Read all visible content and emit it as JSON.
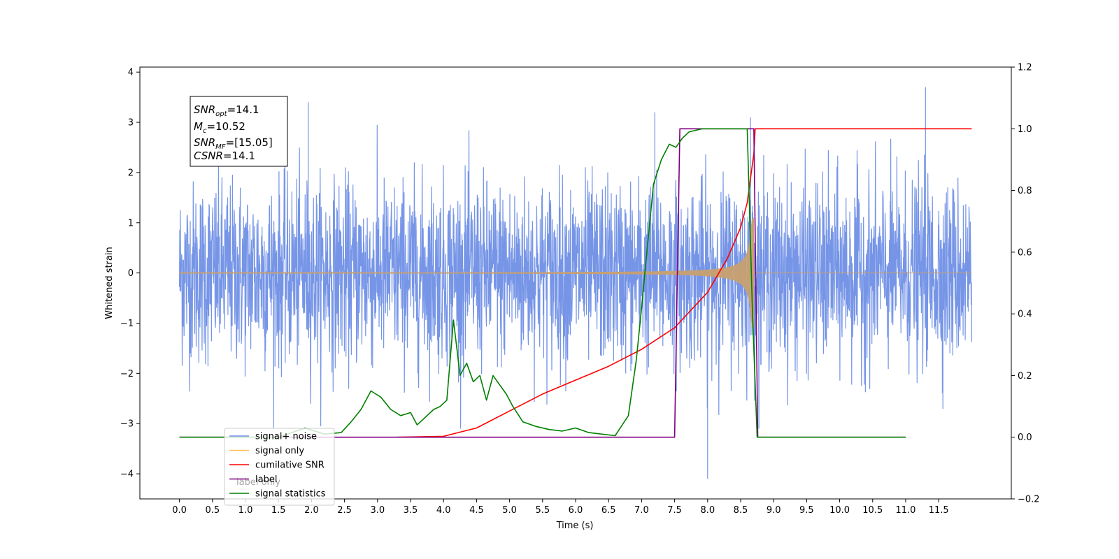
{
  "chart_data": {
    "type": "line",
    "xlabel": "Time (s)",
    "ylabel": "Whitened strain",
    "xlim": [
      -0.6,
      12.6
    ],
    "ylim": [
      -4.5,
      4.1
    ],
    "y2lim": [
      -0.2,
      1.2
    ],
    "x_ticks": [
      "0.0",
      "0.5",
      "1.0",
      "1.5",
      "2.0",
      "2.5",
      "3.0",
      "3.5",
      "4.0",
      "4.5",
      "5.0",
      "5.5",
      "6.0",
      "6.5",
      "7.0",
      "7.5",
      "8.0",
      "8.5",
      "9.0",
      "9.5",
      "10.0",
      "10.5",
      "11.0",
      "11.5"
    ],
    "y_ticks": [
      "−4",
      "−3",
      "−2",
      "−1",
      "0",
      "1",
      "2",
      "3",
      "4"
    ],
    "y2_ticks": [
      "−0.2",
      "0.0",
      "0.2",
      "0.4",
      "0.6",
      "0.8",
      "1.0",
      "1.2"
    ],
    "annotation": {
      "snr_opt": {
        "base": "SNR",
        "sub": "opt",
        "value": "=14.1"
      },
      "mc": {
        "base": "M",
        "sub": "c",
        "value": "=10.52"
      },
      "snr_mf": {
        "base": "SNR",
        "sub": "MF",
        "value": "=[15.05]"
      },
      "csnr": {
        "base": "CSNR",
        "value": "=14.1"
      }
    },
    "legend": {
      "placement": "lower-left",
      "entries": [
        {
          "label": "signal+ noise",
          "color": "#6f8fe6"
        },
        {
          "label": "signal only",
          "color": "#ffbf5a"
        },
        {
          "label": "cumilative SNR",
          "color": "#ff0000"
        },
        {
          "label": "label",
          "color": "#800080"
        },
        {
          "label": "signal statistics",
          "color": "#008000"
        }
      ]
    },
    "hidden_legend_text": "label only",
    "series": [
      {
        "name": "signal+ noise",
        "color": "#6f8fe6",
        "axis": "left",
        "x_range": [
          0.0,
          12.0
        ],
        "noise_sigma": 0.9,
        "notable_peaks": [
          {
            "x": 1.95,
            "y": 3.4
          },
          {
            "x": 7.2,
            "y": 3.2
          },
          {
            "x": 8.0,
            "y": -4.1
          },
          {
            "x": 8.65,
            "y": 3.1
          },
          {
            "x": 11.3,
            "y": 3.7
          }
        ]
      },
      {
        "name": "signal only",
        "color": "#c8a070",
        "axis": "left",
        "chirp_start": 4.0,
        "merger": 8.7,
        "peak_amplitude": 1.1
      },
      {
        "name": "cumilative SNR",
        "color": "#ff0000",
        "axis": "right",
        "x": [
          3.3,
          4.0,
          4.5,
          5.0,
          5.5,
          6.0,
          6.5,
          7.0,
          7.5,
          8.0,
          8.3,
          8.5,
          8.6,
          8.7,
          8.72,
          12.0
        ],
        "y": [
          0.0,
          0.003,
          0.03,
          0.085,
          0.14,
          0.185,
          0.23,
          0.285,
          0.355,
          0.47,
          0.58,
          0.68,
          0.76,
          0.92,
          1.0,
          1.0
        ]
      },
      {
        "name": "label",
        "color": "#800080",
        "axis": "right",
        "x": [
          0.0,
          7.5,
          7.58,
          8.7,
          8.76,
          11.0
        ],
        "y": [
          0.0,
          0.0,
          1.0,
          1.0,
          0.0,
          0.0
        ]
      },
      {
        "name": "signal statistics",
        "color": "#008000",
        "axis": "right",
        "x": [
          0.0,
          1.5,
          1.9,
          2.2,
          2.45,
          2.6,
          2.75,
          2.9,
          3.05,
          3.2,
          3.35,
          3.5,
          3.6,
          3.7,
          3.85,
          3.95,
          4.05,
          4.15,
          4.25,
          4.35,
          4.45,
          4.55,
          4.65,
          4.75,
          4.85,
          4.95,
          5.05,
          5.2,
          5.4,
          5.6,
          5.8,
          6.0,
          6.2,
          6.4,
          6.6,
          6.8,
          6.92,
          7.0,
          7.08,
          7.18,
          7.3,
          7.42,
          7.52,
          7.62,
          7.72,
          7.82,
          7.92,
          8.0,
          8.6,
          8.68,
          8.75,
          11.0
        ],
        "y": [
          0.0,
          0.0,
          0.03,
          0.01,
          0.015,
          0.05,
          0.09,
          0.15,
          0.13,
          0.09,
          0.07,
          0.08,
          0.04,
          0.06,
          0.09,
          0.1,
          0.12,
          0.38,
          0.2,
          0.24,
          0.18,
          0.2,
          0.12,
          0.2,
          0.17,
          0.14,
          0.1,
          0.05,
          0.035,
          0.025,
          0.02,
          0.03,
          0.015,
          0.01,
          0.005,
          0.07,
          0.25,
          0.42,
          0.6,
          0.82,
          0.9,
          0.95,
          0.94,
          0.97,
          0.99,
          0.995,
          1.0,
          1.0,
          1.0,
          0.4,
          0.0,
          0.0
        ]
      }
    ]
  }
}
